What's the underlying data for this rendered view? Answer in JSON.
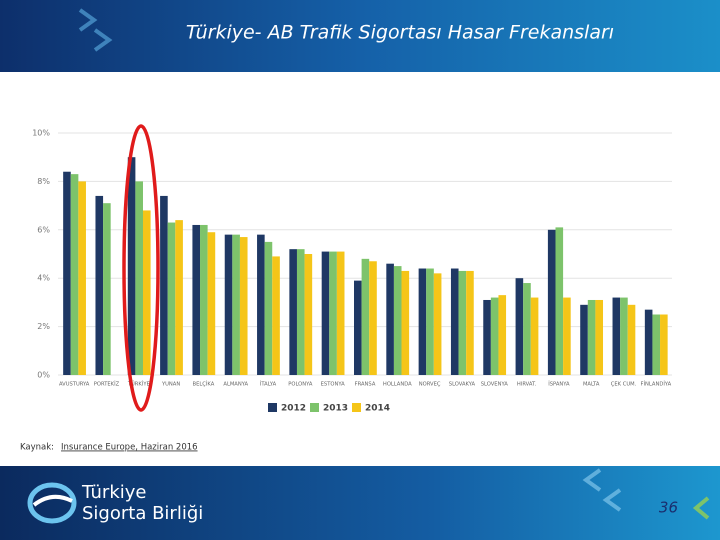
{
  "header": {
    "title": "Türkiye- AB Trafik Sigortası Hasar Frekansları"
  },
  "chart_data": {
    "type": "bar",
    "categories": [
      "AVUSTURYA",
      "PORTEKİZ",
      "TÜRKİYE",
      "YUNAN",
      "BELÇİKA",
      "ALMANYA",
      "İTALYA",
      "POLONYA",
      "ESTONYA",
      "FRANSA",
      "HOLLANDA",
      "NORVEÇ",
      "SLOVAKYA",
      "SLOVENYA",
      "HIRVAT.",
      "İSPANYA",
      "MALTA",
      "ÇEK CUM.",
      "FİNLANDİYA"
    ],
    "series": [
      {
        "name": "2012",
        "color": "#1f3864",
        "values": [
          8.4,
          7.4,
          9.0,
          7.4,
          6.2,
          5.8,
          5.8,
          5.2,
          5.1,
          3.9,
          4.6,
          4.4,
          4.4,
          3.1,
          4.0,
          6.0,
          2.9,
          3.2,
          2.7
        ]
      },
      {
        "name": "2013",
        "color": "#7dc36b",
        "values": [
          8.3,
          7.1,
          8.0,
          6.3,
          6.2,
          5.8,
          5.5,
          5.2,
          5.1,
          4.8,
          4.5,
          4.4,
          4.3,
          3.2,
          3.8,
          6.1,
          3.1,
          3.2,
          2.5
        ]
      },
      {
        "name": "2014",
        "color": "#f5c518",
        "values": [
          8.0,
          null,
          6.8,
          6.4,
          5.9,
          5.7,
          4.9,
          5.0,
          5.1,
          4.7,
          4.3,
          4.2,
          4.3,
          3.3,
          3.2,
          3.2,
          3.1,
          2.9,
          2.5
        ]
      }
    ],
    "ylim": [
      0,
      10
    ],
    "yticks": [
      {
        "value": 0,
        "label": "0%"
      },
      {
        "value": 2,
        "label": "2%"
      },
      {
        "value": 4,
        "label": "4%"
      },
      {
        "value": 6,
        "label": "6%"
      },
      {
        "value": 8,
        "label": "8%"
      },
      {
        "value": 10,
        "label": "10%"
      }
    ],
    "grid": true,
    "legend": "bottom"
  },
  "source": {
    "prefix": "Kaynak:",
    "link": "Insurance Europe, Haziran 2016"
  },
  "footer": {
    "logo_line1": "Türkiye",
    "logo_line2": "Sigorta Birliği",
    "page": "36"
  }
}
